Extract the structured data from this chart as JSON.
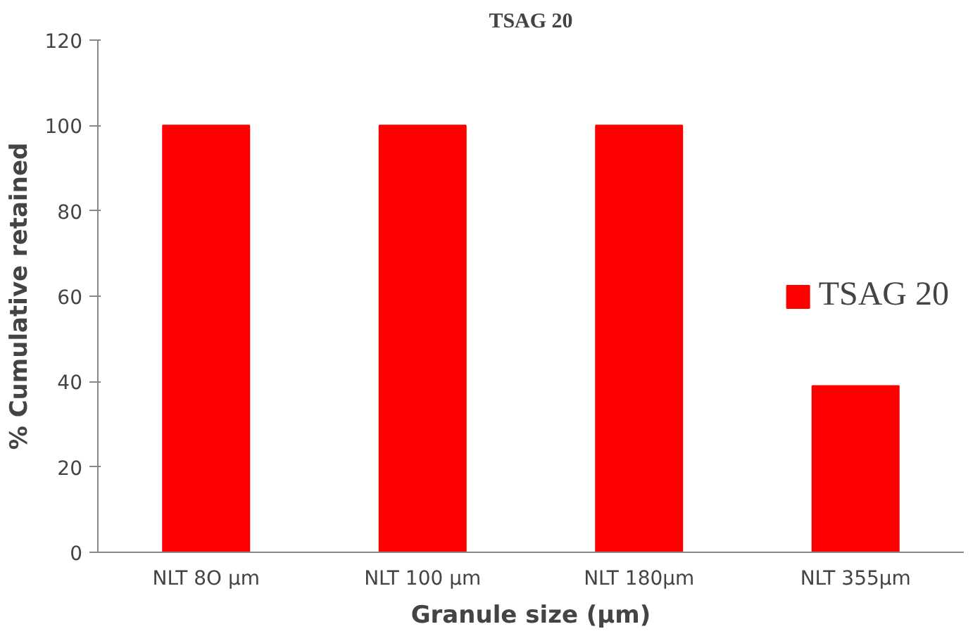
{
  "chart_data": {
    "type": "bar",
    "title": "TSAG 20",
    "xlabel": "Granule size (µm)",
    "ylabel": "% Cumulative retained",
    "categories": [
      "NLT 8O µm",
      "NLT 100 µm",
      "NLT 180µm",
      "NLT 355µm"
    ],
    "series": [
      {
        "name": "TSAG 20",
        "color": "#ff0000",
        "values": [
          100,
          100,
          100,
          39
        ]
      }
    ],
    "ylim": [
      0,
      120
    ],
    "yticks": [
      0,
      20,
      40,
      60,
      80,
      100,
      120
    ],
    "grid": false,
    "legend": "right"
  }
}
